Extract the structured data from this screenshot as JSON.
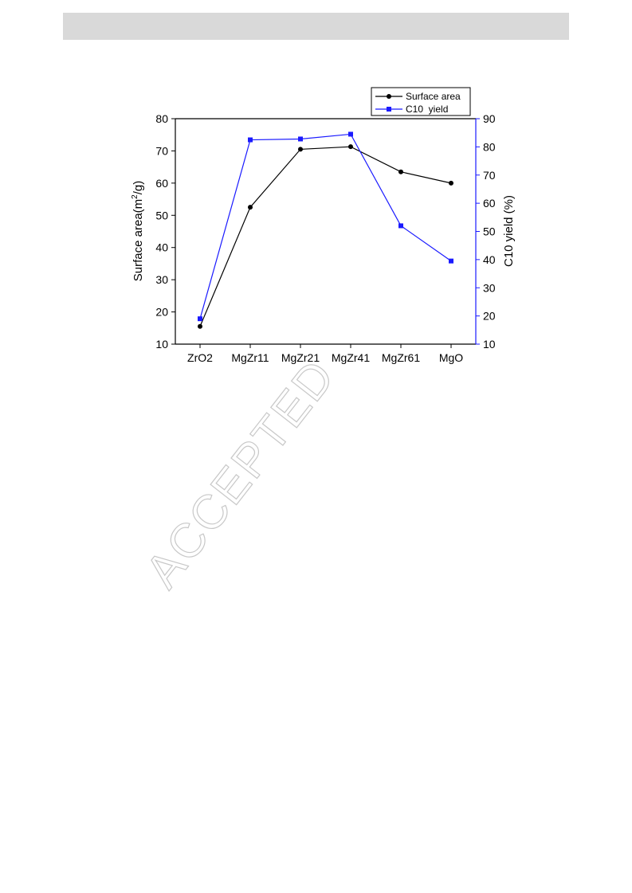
{
  "watermark": "ACCEPTED",
  "chart_data": {
    "type": "line",
    "categories": [
      "ZrO2",
      "MgZr11",
      "MgZr21",
      "MgZr41",
      "MgZr61",
      "MgO"
    ],
    "series": [
      {
        "name": "Surface area",
        "axis": "left",
        "color": "#000000",
        "marker": "circle",
        "values": [
          15.5,
          52.5,
          70.5,
          71.3,
          63.5,
          60.0
        ]
      },
      {
        "name": "C10  yield",
        "axis": "right",
        "color": "#1a1aff",
        "marker": "square",
        "values": [
          19,
          82.5,
          82.8,
          84.5,
          52,
          39.5
        ]
      }
    ],
    "ylabel_left": "Surface area(m²/g)",
    "ylabel_right": "C10  yield (%)",
    "ylim_left": [
      10,
      80
    ],
    "ylim_right": [
      10,
      90
    ],
    "yticks_left": [
      10,
      20,
      30,
      40,
      50,
      60,
      70,
      80
    ],
    "yticks_right": [
      10,
      20,
      30,
      40,
      50,
      60,
      70,
      80,
      90
    ],
    "grid": false,
    "legend_position": "top-right"
  }
}
